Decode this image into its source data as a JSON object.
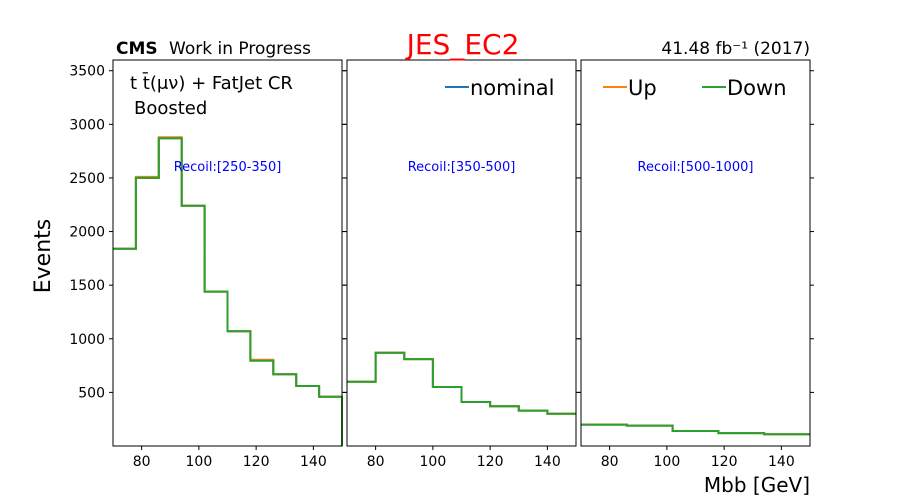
{
  "chart_data": {
    "type": "line",
    "title": "JES_EC2",
    "title_color": "#ff0000",
    "experiment_label": "CMS",
    "experiment_sublabel": "Work in Progress",
    "luminosity_label": "41.48 fb⁻¹ (2017)",
    "region_label_line1": "t t̄(μν) + FatJet CR",
    "region_label_line2": "Boosted",
    "ylabel": "Events",
    "xlabel": "Mbb [GeV]",
    "ylim": [
      0,
      3600
    ],
    "yticks": [
      500,
      1000,
      1500,
      2000,
      2500,
      3000,
      3500
    ],
    "xlim": [
      70,
      150
    ],
    "xticks": [
      80,
      100,
      120,
      140
    ],
    "grid": false,
    "legend": [
      {
        "name": "nominal",
        "color": "#1f77b4",
        "panel": 1
      },
      {
        "name": "Up",
        "color": "#ff7f0e",
        "panel": 2
      },
      {
        "name": "Down",
        "color": "#2ca02c",
        "panel": 2
      }
    ],
    "panels": [
      {
        "recoil_label": "Recoil:[250-350]",
        "bin_edges": [
          70,
          78,
          86,
          94,
          102,
          110,
          118,
          126,
          134,
          142,
          150
        ],
        "series": [
          {
            "name": "nominal",
            "color": "#1f77b4",
            "values": [
              1840,
              2500,
              2870,
              2240,
              1440,
              1070,
              800,
              670,
              560,
              460
            ]
          },
          {
            "name": "Up",
            "color": "#ff7f0e",
            "values": [
              1840,
              2510,
              2880,
              2240,
              1440,
              1070,
              805,
              670,
              560,
              460
            ]
          },
          {
            "name": "Down",
            "color": "#2ca02c",
            "values": [
              1840,
              2500,
              2870,
              2240,
              1440,
              1070,
              795,
              670,
              560,
              460
            ]
          }
        ]
      },
      {
        "recoil_label": "Recoil:[350-500]",
        "bin_edges": [
          70,
          80,
          90,
          100,
          110,
          120,
          130,
          140,
          150
        ],
        "series": [
          {
            "name": "nominal",
            "color": "#1f77b4",
            "values": [
              600,
              870,
              810,
              550,
              410,
              370,
              330,
              300
            ]
          },
          {
            "name": "Up",
            "color": "#ff7f0e",
            "values": [
              600,
              870,
              810,
              550,
              410,
              370,
              330,
              300
            ]
          },
          {
            "name": "Down",
            "color": "#2ca02c",
            "values": [
              600,
              870,
              810,
              550,
              410,
              370,
              330,
              300
            ]
          }
        ]
      },
      {
        "recoil_label": "Recoil:[500-1000]",
        "bin_edges": [
          70,
          86,
          102,
          118,
          134,
          150
        ],
        "series": [
          {
            "name": "nominal",
            "color": "#1f77b4",
            "values": [
              200,
              190,
              140,
              120,
              110
            ]
          },
          {
            "name": "Up",
            "color": "#ff7f0e",
            "values": [
              200,
              190,
              140,
              120,
              110
            ]
          },
          {
            "name": "Down",
            "color": "#2ca02c",
            "values": [
              200,
              190,
              140,
              120,
              110
            ]
          }
        ]
      }
    ]
  }
}
